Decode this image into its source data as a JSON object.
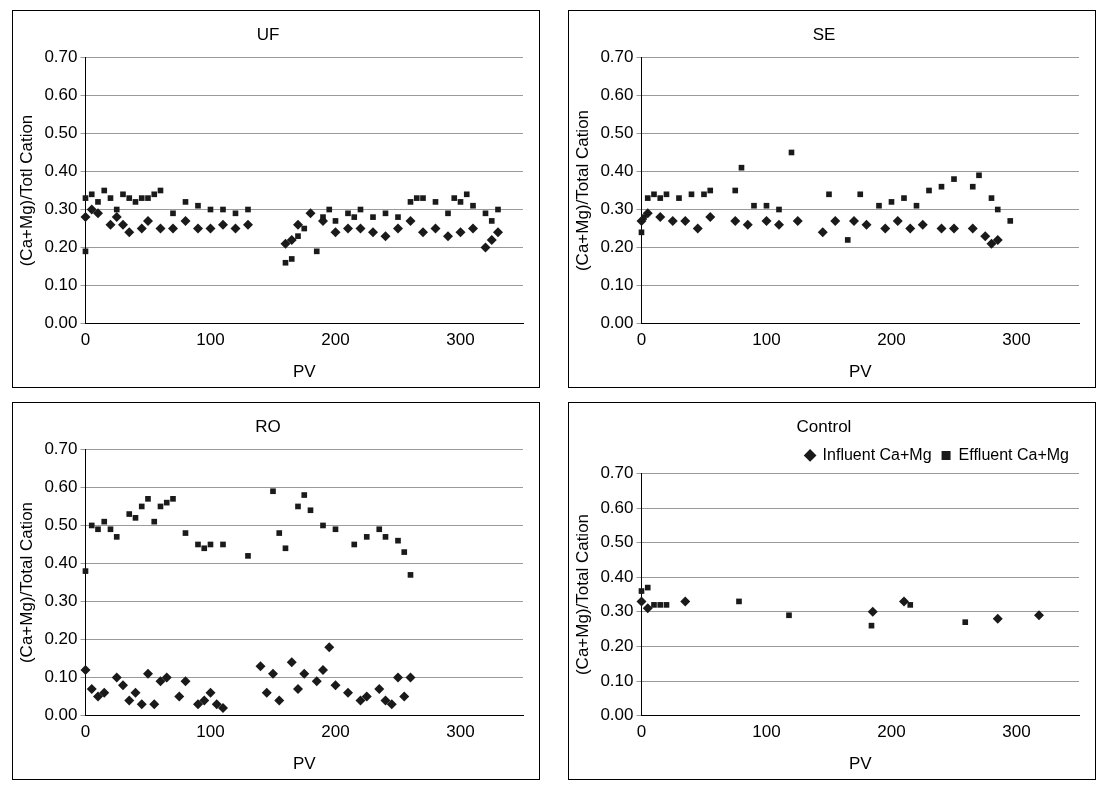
{
  "chart_data": [
    {
      "type": "scatter",
      "title": "UF",
      "xlabel": "PV",
      "ylabel": "(Ca+Mg)/Totl Cation",
      "xlim": [
        0,
        350
      ],
      "xticks": [
        0,
        100,
        200,
        300
      ],
      "ylim": [
        0,
        0.7
      ],
      "yticks": [
        {
          "value": 0,
          "label": "0.00"
        },
        {
          "value": 0.1,
          "label": "0.10"
        },
        {
          "value": 0.2,
          "label": "0.20"
        },
        {
          "value": 0.3,
          "label": "0.30"
        },
        {
          "value": 0.4,
          "label": "0.40"
        },
        {
          "value": 0.5,
          "label": "0.50"
        },
        {
          "value": 0.6,
          "label": "0.60"
        },
        {
          "value": 0.7,
          "label": "0.70"
        }
      ],
      "grid": "y",
      "legend": false,
      "series": [
        {
          "color": "#1a1a1a",
          "marker": "diamond",
          "x": [
            0,
            5,
            10,
            20,
            25,
            30,
            35,
            45,
            50,
            60,
            70,
            80,
            90,
            100,
            110,
            120,
            130,
            160,
            165,
            170,
            180,
            190,
            200,
            210,
            220,
            230,
            240,
            250,
            260,
            270,
            280,
            290,
            300,
            310,
            320,
            325,
            330
          ],
          "values": [
            0.28,
            0.3,
            0.29,
            0.26,
            0.28,
            0.26,
            0.24,
            0.25,
            0.27,
            0.25,
            0.25,
            0.27,
            0.25,
            0.25,
            0.26,
            0.25,
            0.26,
            0.21,
            0.22,
            0.26,
            0.29,
            0.27,
            0.24,
            0.25,
            0.25,
            0.24,
            0.23,
            0.25,
            0.27,
            0.24,
            0.25,
            0.23,
            0.24,
            0.25,
            0.2,
            0.22,
            0.24
          ]
        },
        {
          "color": "#1a1a1a",
          "marker": "square",
          "x": [
            0,
            0,
            3,
            5,
            10,
            15,
            20,
            25,
            30,
            35,
            40,
            45,
            50,
            55,
            60,
            70,
            80,
            90,
            100,
            110,
            120,
            130,
            160,
            165,
            170,
            175,
            185,
            190,
            195,
            200,
            210,
            215,
            220,
            230,
            240,
            250,
            260,
            265,
            270,
            280,
            290,
            295,
            300,
            305,
            310,
            320,
            325,
            330
          ],
          "values": [
            0.19,
            0.33,
            null,
            0.34,
            0.32,
            0.35,
            0.33,
            0.3,
            0.34,
            0.33,
            0.32,
            0.33,
            0.33,
            0.34,
            0.35,
            0.29,
            0.32,
            0.31,
            0.3,
            0.3,
            0.29,
            0.3,
            0.16,
            0.17,
            0.23,
            0.25,
            0.19,
            0.28,
            0.3,
            0.27,
            0.29,
            0.28,
            0.3,
            0.28,
            0.29,
            0.28,
            0.32,
            0.33,
            0.33,
            0.32,
            0.29,
            0.33,
            0.32,
            0.34,
            0.31,
            0.29,
            0.27,
            0.3
          ]
        }
      ]
    },
    {
      "type": "scatter",
      "title": "SE",
      "xlabel": "PV",
      "ylabel": "(Ca+Mg)/Total Cation",
      "xlim": [
        0,
        350
      ],
      "xticks": [
        0,
        100,
        200,
        300
      ],
      "ylim": [
        0,
        0.7
      ],
      "yticks": [
        {
          "value": 0,
          "label": "0.00"
        },
        {
          "value": 0.1,
          "label": "0.10"
        },
        {
          "value": 0.2,
          "label": "0.20"
        },
        {
          "value": 0.3,
          "label": "0.30"
        },
        {
          "value": 0.4,
          "label": "0.40"
        },
        {
          "value": 0.5,
          "label": "0.50"
        },
        {
          "value": 0.6,
          "label": "0.60"
        },
        {
          "value": 0.7,
          "label": "0.70"
        }
      ],
      "grid": "y",
      "legend": false,
      "series": [
        {
          "color": "#1a1a1a",
          "marker": "diamond",
          "x": [
            0,
            5,
            15,
            25,
            35,
            45,
            55,
            75,
            85,
            100,
            110,
            125,
            145,
            155,
            170,
            180,
            195,
            205,
            215,
            225,
            240,
            250,
            265,
            275,
            280,
            285
          ],
          "values": [
            0.27,
            0.29,
            0.28,
            0.27,
            0.27,
            0.25,
            0.28,
            0.27,
            0.26,
            0.27,
            0.26,
            0.27,
            0.24,
            0.27,
            0.27,
            0.26,
            0.25,
            0.27,
            0.25,
            0.26,
            0.25,
            0.25,
            0.25,
            0.23,
            0.21,
            0.22
          ]
        },
        {
          "color": "#1a1a1a",
          "marker": "square",
          "x": [
            0,
            2,
            5,
            10,
            15,
            20,
            30,
            40,
            50,
            55,
            75,
            80,
            90,
            100,
            110,
            120,
            150,
            165,
            175,
            190,
            200,
            210,
            220,
            230,
            240,
            250,
            265,
            270,
            280,
            285,
            295
          ],
          "values": [
            0.24,
            0.28,
            0.33,
            0.34,
            0.33,
            0.34,
            0.33,
            0.34,
            0.34,
            0.35,
            0.35,
            0.41,
            0.31,
            0.31,
            0.3,
            0.45,
            0.34,
            0.22,
            0.34,
            0.31,
            0.32,
            0.33,
            0.31,
            0.35,
            0.36,
            0.38,
            0.36,
            0.39,
            0.33,
            0.3,
            0.27
          ]
        }
      ]
    },
    {
      "type": "scatter",
      "title": "RO",
      "xlabel": "PV",
      "ylabel": "(Ca+Mg)/Total Cation",
      "xlim": [
        0,
        350
      ],
      "xticks": [
        0,
        100,
        200,
        300
      ],
      "ylim": [
        0,
        0.7
      ],
      "yticks": [
        {
          "value": 0,
          "label": "0.00"
        },
        {
          "value": 0.1,
          "label": "0.10"
        },
        {
          "value": 0.2,
          "label": "0.20"
        },
        {
          "value": 0.3,
          "label": "0.30"
        },
        {
          "value": 0.4,
          "label": "0.40"
        },
        {
          "value": 0.5,
          "label": "0.50"
        },
        {
          "value": 0.6,
          "label": "0.60"
        },
        {
          "value": 0.7,
          "label": "0.70"
        }
      ],
      "grid": "y",
      "legend": false,
      "series": [
        {
          "color": "#1a1a1a",
          "marker": "diamond",
          "x": [
            0,
            5,
            10,
            15,
            25,
            30,
            35,
            40,
            45,
            50,
            55,
            60,
            65,
            75,
            80,
            90,
            95,
            100,
            105,
            110,
            140,
            145,
            150,
            155,
            165,
            170,
            175,
            185,
            190,
            195,
            200,
            210,
            220,
            225,
            235,
            240,
            245,
            250,
            255,
            260
          ],
          "values": [
            0.12,
            0.07,
            0.05,
            0.06,
            0.1,
            0.08,
            0.04,
            0.06,
            0.03,
            0.11,
            0.03,
            0.09,
            0.1,
            0.05,
            0.09,
            0.03,
            0.04,
            0.06,
            0.03,
            0.02,
            0.13,
            0.06,
            0.11,
            0.04,
            0.14,
            0.07,
            0.11,
            0.09,
            0.12,
            0.18,
            0.08,
            0.06,
            0.04,
            0.05,
            0.07,
            0.04,
            0.03,
            0.1,
            0.05,
            0.1
          ]
        },
        {
          "color": "#1a1a1a",
          "marker": "square",
          "x": [
            0,
            5,
            10,
            15,
            20,
            25,
            35,
            40,
            45,
            50,
            55,
            60,
            65,
            70,
            80,
            90,
            95,
            100,
            110,
            130,
            150,
            155,
            160,
            170,
            175,
            180,
            190,
            200,
            215,
            225,
            235,
            240,
            250,
            255,
            260
          ],
          "values": [
            0.38,
            0.5,
            0.49,
            0.51,
            0.49,
            0.47,
            0.53,
            0.52,
            0.55,
            0.57,
            0.51,
            0.55,
            0.56,
            0.57,
            0.48,
            0.45,
            0.44,
            0.45,
            0.45,
            0.42,
            0.59,
            0.48,
            0.44,
            0.55,
            0.58,
            0.54,
            0.5,
            0.49,
            0.45,
            0.47,
            0.49,
            0.47,
            0.46,
            0.43,
            0.37
          ]
        }
      ]
    },
    {
      "type": "scatter",
      "title": "Control",
      "xlabel": "PV",
      "ylabel": "(Ca+Mg)/Total Cation",
      "xlim": [
        0,
        350
      ],
      "xticks": [
        0,
        100,
        200,
        300
      ],
      "ylim": [
        0,
        0.7
      ],
      "yticks": [
        {
          "value": 0,
          "label": "0.00"
        },
        {
          "value": 0.1,
          "label": "0.10"
        },
        {
          "value": 0.2,
          "label": "0.20"
        },
        {
          "value": 0.3,
          "label": "0.30"
        },
        {
          "value": 0.4,
          "label": "0.40"
        },
        {
          "value": 0.5,
          "label": "0.50"
        },
        {
          "value": 0.6,
          "label": "0.60"
        },
        {
          "value": 0.7,
          "label": "0.70"
        }
      ],
      "grid": "y",
      "legend": "top right",
      "series": [
        {
          "name": "Influent Ca+Mg",
          "color": "#1a1a1a",
          "marker": "diamond",
          "x": [
            0,
            5,
            35,
            185,
            210,
            285,
            318
          ],
          "values": [
            0.33,
            0.31,
            0.33,
            0.3,
            0.33,
            0.28,
            0.29
          ]
        },
        {
          "name": "Effluent Ca+Mg",
          "color": "#1a1a1a",
          "marker": "square",
          "x": [
            0,
            5,
            10,
            15,
            20,
            78,
            118,
            184,
            215,
            259
          ],
          "values": [
            0.36,
            0.37,
            0.32,
            0.32,
            0.32,
            0.33,
            0.29,
            0.26,
            0.32,
            0.27
          ]
        }
      ]
    }
  ]
}
